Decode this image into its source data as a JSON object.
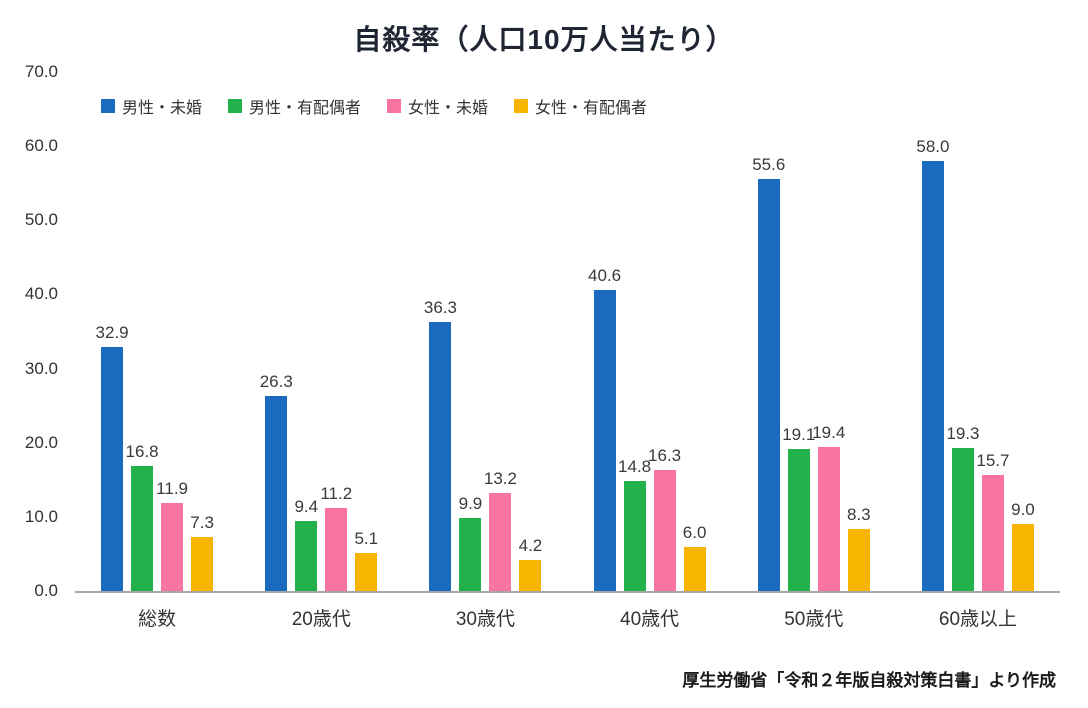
{
  "chart_data": {
    "type": "bar",
    "title": "自殺率（人口10万人当たり）",
    "categories": [
      "総数",
      "20歳代",
      "30歳代",
      "40歳代",
      "50歳代",
      "60歳以上"
    ],
    "series": [
      {
        "name": "男性・未婚",
        "color": "#1A6BBF",
        "values": [
          32.9,
          26.3,
          36.3,
          40.6,
          55.6,
          58.0
        ]
      },
      {
        "name": "男性・有配偶者",
        "color": "#21B24B",
        "values": [
          16.8,
          9.4,
          9.9,
          14.8,
          19.1,
          19.3
        ]
      },
      {
        "name": "女性・未婚",
        "color": "#F9759F",
        "values": [
          11.9,
          11.2,
          13.2,
          16.3,
          19.4,
          15.7
        ]
      },
      {
        "name": "女性・有配偶者",
        "color": "#F8B500",
        "values": [
          7.3,
          5.1,
          4.2,
          6.0,
          8.3,
          9.0
        ]
      }
    ],
    "ylim": [
      0,
      70
    ],
    "ytick_step": 10,
    "ytick_labels": [
      "0.0",
      "10.0",
      "20.0",
      "30.0",
      "40.0",
      "50.0",
      "60.0",
      "70.0"
    ],
    "grid": false,
    "legend_position": "top-left",
    "value_label_decimals": 1
  },
  "footer": {
    "source": "厚生労働省「令和２年版自殺対策白書」より作成"
  }
}
